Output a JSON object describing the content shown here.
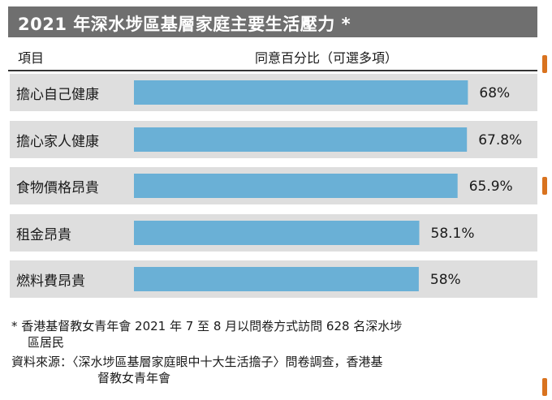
{
  "header": {
    "title": "2021 年深水埗區基層家庭主要生活壓力 *",
    "col_item": "項目",
    "col_pct": "同意百分比（可選多項）"
  },
  "chart_data": {
    "type": "bar",
    "orientation": "horizontal",
    "categories": [
      "擔心自己健康",
      "擔心家人健康",
      "食物價格昂貴",
      "租金昂貴",
      "燃料費昂貴"
    ],
    "values": [
      68,
      67.8,
      65.9,
      58.1,
      58
    ],
    "value_labels": [
      "68%",
      "67.8%",
      "65.9%",
      "58.1%",
      "58%"
    ],
    "xlim": [
      0,
      100
    ],
    "bar_color": "#6ab0d6",
    "row_background": "#dedede"
  },
  "footer": {
    "note_line1": "* 香港基督教女青年會 2021 年 7 至 8 月以問卷方式訪問 628 名深水埗",
    "note_line2": "區居民",
    "source_line1": "資料來源：〈深水埗區基層家庭眼中十大生活擔子〉問卷調查，香港基",
    "source_line2": "督教女青年會"
  }
}
